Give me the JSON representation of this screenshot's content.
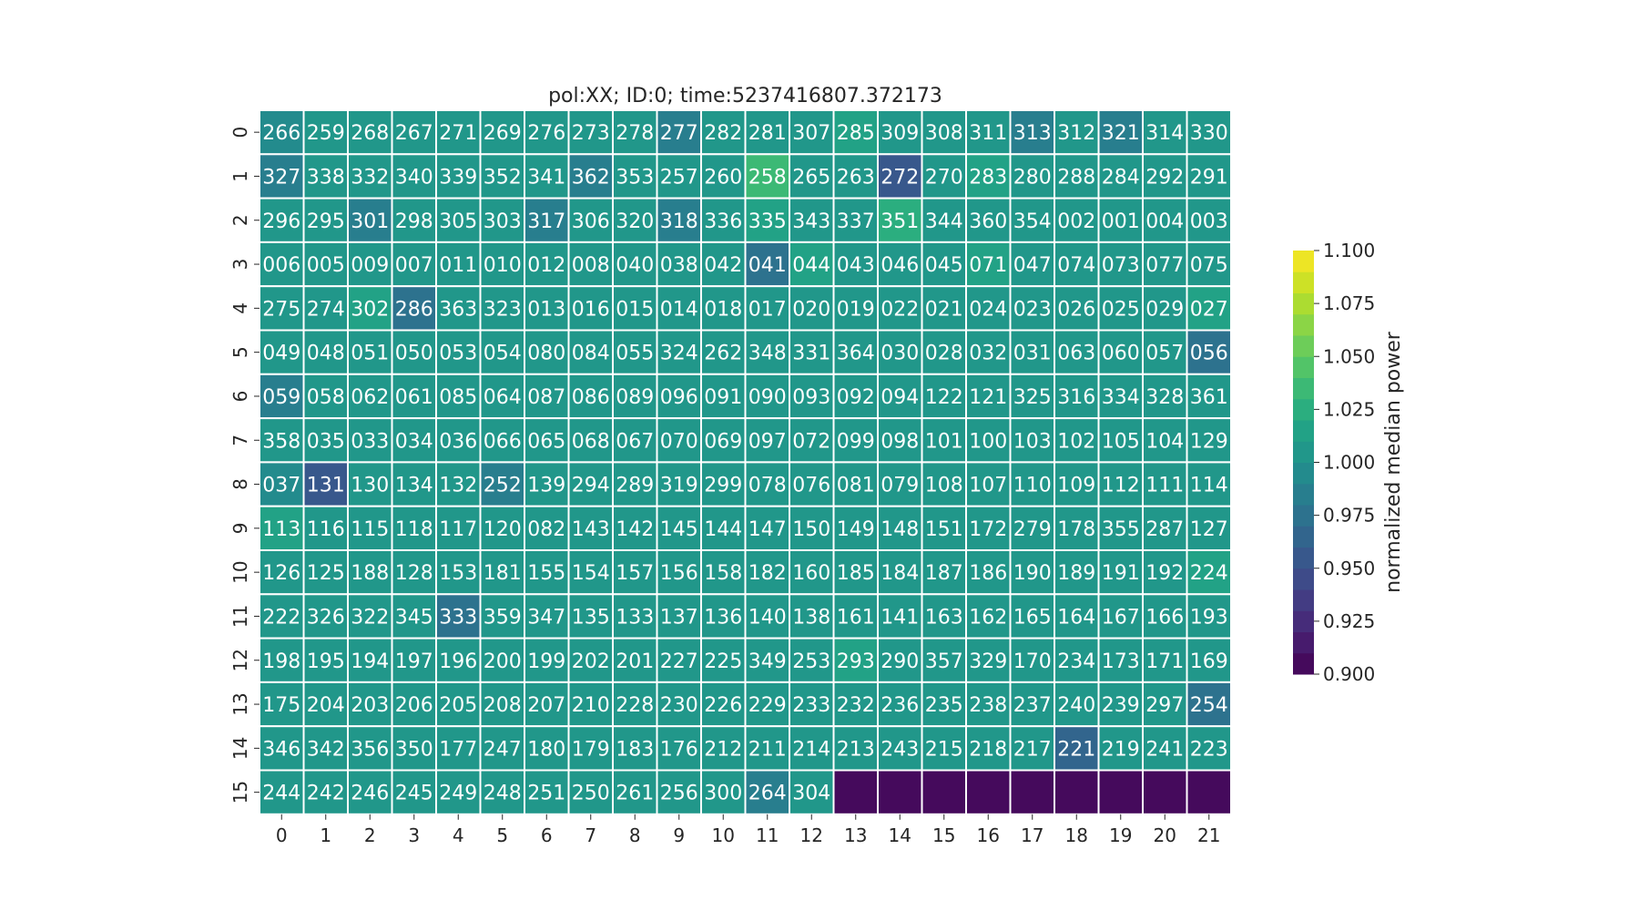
{
  "chart_data": {
    "type": "heatmap",
    "title": "pol:XX; ID:0; time:5237416807.372173",
    "x_tick_labels": [
      "0",
      "1",
      "2",
      "3",
      "4",
      "5",
      "6",
      "7",
      "8",
      "9",
      "10",
      "11",
      "12",
      "13",
      "14",
      "15",
      "16",
      "17",
      "18",
      "19",
      "20",
      "21"
    ],
    "y_tick_labels": [
      "0",
      "1",
      "2",
      "3",
      "4",
      "5",
      "6",
      "7",
      "8",
      "9",
      "10",
      "11",
      "12",
      "13",
      "14",
      "15"
    ],
    "colorbar": {
      "label": "normalized median power",
      "min": 0.9,
      "max": 1.1,
      "ticks": [
        "0.900",
        "0.925",
        "0.950",
        "0.975",
        "1.000",
        "1.025",
        "1.050",
        "1.075",
        "1.100"
      ],
      "colormap": "viridis",
      "levels": 20
    },
    "cell_labels": [
      [
        "266",
        "259",
        "268",
        "267",
        "271",
        "269",
        "276",
        "273",
        "278",
        "277",
        "282",
        "281",
        "307",
        "285",
        "309",
        "308",
        "311",
        "313",
        "312",
        "321",
        "314",
        "330"
      ],
      [
        "327",
        "338",
        "332",
        "340",
        "339",
        "352",
        "341",
        "362",
        "353",
        "257",
        "260",
        "258",
        "265",
        "263",
        "272",
        "270",
        "283",
        "280",
        "288",
        "284",
        "292",
        "291"
      ],
      [
        "296",
        "295",
        "301",
        "298",
        "305",
        "303",
        "317",
        "306",
        "320",
        "318",
        "336",
        "335",
        "343",
        "337",
        "351",
        "344",
        "360",
        "354",
        "002",
        "001",
        "004",
        "003"
      ],
      [
        "006",
        "005",
        "009",
        "007",
        "011",
        "010",
        "012",
        "008",
        "040",
        "038",
        "042",
        "041",
        "044",
        "043",
        "046",
        "045",
        "071",
        "047",
        "074",
        "073",
        "077",
        "075"
      ],
      [
        "275",
        "274",
        "302",
        "286",
        "363",
        "323",
        "013",
        "016",
        "015",
        "014",
        "018",
        "017",
        "020",
        "019",
        "022",
        "021",
        "024",
        "023",
        "026",
        "025",
        "029",
        "027"
      ],
      [
        "049",
        "048",
        "051",
        "050",
        "053",
        "054",
        "080",
        "084",
        "055",
        "324",
        "262",
        "348",
        "331",
        "364",
        "030",
        "028",
        "032",
        "031",
        "063",
        "060",
        "057",
        "056"
      ],
      [
        "059",
        "058",
        "062",
        "061",
        "085",
        "064",
        "087",
        "086",
        "089",
        "096",
        "091",
        "090",
        "093",
        "092",
        "094",
        "122",
        "121",
        "325",
        "316",
        "334",
        "328",
        "361"
      ],
      [
        "358",
        "035",
        "033",
        "034",
        "036",
        "066",
        "065",
        "068",
        "067",
        "070",
        "069",
        "097",
        "072",
        "099",
        "098",
        "101",
        "100",
        "103",
        "102",
        "105",
        "104",
        "129"
      ],
      [
        "037",
        "131",
        "130",
        "134",
        "132",
        "252",
        "139",
        "294",
        "289",
        "319",
        "299",
        "078",
        "076",
        "081",
        "079",
        "108",
        "107",
        "110",
        "109",
        "112",
        "111",
        "114"
      ],
      [
        "113",
        "116",
        "115",
        "118",
        "117",
        "120",
        "082",
        "143",
        "142",
        "145",
        "144",
        "147",
        "150",
        "149",
        "148",
        "151",
        "172",
        "279",
        "178",
        "355",
        "287",
        "127"
      ],
      [
        "126",
        "125",
        "188",
        "128",
        "153",
        "181",
        "155",
        "154",
        "157",
        "156",
        "158",
        "182",
        "160",
        "185",
        "184",
        "187",
        "186",
        "190",
        "189",
        "191",
        "192",
        "224"
      ],
      [
        "222",
        "326",
        "322",
        "345",
        "333",
        "359",
        "347",
        "135",
        "133",
        "137",
        "136",
        "140",
        "138",
        "161",
        "141",
        "163",
        "162",
        "165",
        "164",
        "167",
        "166",
        "193"
      ],
      [
        "198",
        "195",
        "194",
        "197",
        "196",
        "200",
        "199",
        "202",
        "201",
        "227",
        "225",
        "349",
        "253",
        "293",
        "290",
        "357",
        "329",
        "170",
        "234",
        "173",
        "171",
        "169"
      ],
      [
        "175",
        "204",
        "203",
        "206",
        "205",
        "208",
        "207",
        "210",
        "228",
        "230",
        "226",
        "229",
        "233",
        "232",
        "236",
        "235",
        "238",
        "237",
        "240",
        "239",
        "297",
        "254"
      ],
      [
        "346",
        "342",
        "356",
        "350",
        "177",
        "247",
        "180",
        "179",
        "183",
        "176",
        "212",
        "211",
        "214",
        "213",
        "243",
        "215",
        "218",
        "217",
        "221",
        "219",
        "241",
        "223"
      ],
      [
        "244",
        "242",
        "246",
        "245",
        "249",
        "248",
        "251",
        "250",
        "261",
        "256",
        "300",
        "264",
        "304",
        "",
        "",
        "",
        "",
        "",
        "",
        "",
        "",
        ""
      ]
    ],
    "values": [
      [
        1.0,
        1.005,
        1.003,
        1.005,
        1.003,
        1.005,
        1.003,
        1.005,
        1.005,
        0.985,
        1.005,
        1.003,
        1.005,
        1.013,
        1.003,
        1.005,
        1.01,
        0.988,
        1.003,
        0.985,
        1.01,
        1.003
      ],
      [
        0.985,
        1.003,
        1.003,
        1.003,
        1.005,
        1.005,
        1.003,
        0.99,
        1.003,
        1.01,
        1.01,
        1.04,
        1.005,
        1.005,
        0.958,
        1.003,
        1.015,
        1.008,
        1.005,
        1.005,
        1.008,
        1.005
      ],
      [
        1.003,
        1.005,
        0.988,
        1.005,
        1.003,
        1.005,
        0.985,
        1.003,
        1.003,
        0.985,
        1.003,
        1.02,
        1.01,
        1.008,
        1.03,
        1.003,
        1.01,
        1.005,
        1.003,
        1.005,
        1.003,
        1.005
      ],
      [
        1.003,
        1.003,
        1.003,
        1.003,
        1.003,
        1.003,
        1.005,
        1.003,
        1.003,
        1.003,
        1.005,
        0.975,
        1.015,
        1.005,
        1.008,
        1.005,
        1.015,
        1.005,
        1.003,
        1.003,
        1.003,
        1.003
      ],
      [
        1.005,
        1.005,
        1.015,
        0.98,
        1.005,
        1.005,
        1.003,
        1.003,
        1.003,
        1.003,
        1.003,
        1.003,
        1.008,
        1.003,
        1.003,
        1.003,
        1.003,
        1.003,
        1.003,
        1.003,
        1.005,
        1.013
      ],
      [
        1.003,
        1.003,
        1.003,
        1.003,
        1.003,
        1.003,
        1.003,
        1.003,
        1.003,
        1.003,
        1.003,
        1.003,
        1.003,
        1.003,
        1.003,
        1.003,
        1.003,
        1.003,
        1.003,
        1.003,
        1.003,
        0.98
      ],
      [
        0.99,
        1.003,
        1.003,
        1.003,
        1.005,
        1.003,
        1.003,
        1.003,
        1.003,
        1.003,
        1.003,
        1.003,
        1.003,
        1.003,
        1.003,
        1.003,
        1.003,
        1.003,
        1.003,
        1.003,
        1.003,
        1.003
      ],
      [
        1.003,
        1.003,
        1.003,
        1.003,
        1.003,
        1.003,
        1.003,
        1.003,
        1.003,
        1.003,
        1.003,
        1.003,
        1.003,
        1.003,
        1.003,
        1.003,
        1.003,
        1.003,
        1.003,
        1.003,
        1.003,
        1.003
      ],
      [
        1.0,
        0.958,
        1.003,
        1.003,
        1.003,
        0.983,
        1.003,
        1.003,
        1.003,
        1.003,
        1.003,
        1.003,
        1.003,
        1.003,
        1.003,
        1.003,
        1.003,
        1.003,
        1.003,
        1.003,
        1.003,
        1.003
      ],
      [
        1.018,
        1.005,
        1.01,
        1.003,
        1.003,
        1.003,
        1.003,
        1.003,
        1.003,
        1.003,
        1.003,
        1.003,
        1.003,
        1.003,
        1.003,
        1.003,
        1.003,
        1.003,
        1.003,
        1.003,
        1.003,
        1.003
      ],
      [
        1.003,
        1.003,
        1.003,
        1.003,
        1.003,
        1.003,
        1.003,
        1.003,
        1.003,
        1.003,
        1.003,
        1.003,
        1.003,
        1.003,
        1.003,
        1.003,
        1.003,
        1.003,
        1.003,
        1.003,
        1.003,
        1.02
      ],
      [
        1.003,
        1.003,
        1.003,
        1.003,
        0.98,
        1.003,
        1.003,
        1.003,
        1.003,
        1.003,
        1.003,
        1.003,
        1.003,
        1.003,
        1.003,
        1.003,
        1.003,
        1.003,
        1.003,
        1.003,
        1.003,
        1.003
      ],
      [
        1.003,
        1.003,
        1.003,
        1.003,
        1.003,
        1.003,
        1.003,
        1.003,
        1.003,
        1.003,
        1.003,
        1.003,
        1.003,
        1.02,
        1.003,
        1.003,
        1.003,
        1.003,
        1.003,
        1.003,
        1.003,
        1.003
      ],
      [
        1.003,
        1.003,
        1.003,
        1.003,
        1.003,
        1.003,
        1.003,
        1.003,
        1.003,
        1.003,
        1.003,
        1.003,
        1.003,
        1.003,
        1.003,
        1.003,
        1.003,
        1.003,
        1.003,
        1.003,
        1.003,
        0.98
      ],
      [
        1.003,
        1.01,
        1.003,
        1.003,
        1.003,
        1.003,
        1.003,
        1.003,
        1.003,
        1.003,
        1.003,
        1.003,
        1.003,
        1.003,
        1.003,
        1.003,
        1.003,
        1.003,
        0.965,
        1.003,
        1.003,
        1.003
      ],
      [
        1.003,
        1.003,
        1.003,
        1.003,
        1.003,
        1.003,
        1.003,
        1.003,
        1.003,
        1.003,
        1.003,
        0.985,
        1.003,
        0.9,
        0.9,
        0.9,
        0.9,
        0.9,
        0.9,
        0.9,
        0.9,
        0.9
      ]
    ]
  }
}
